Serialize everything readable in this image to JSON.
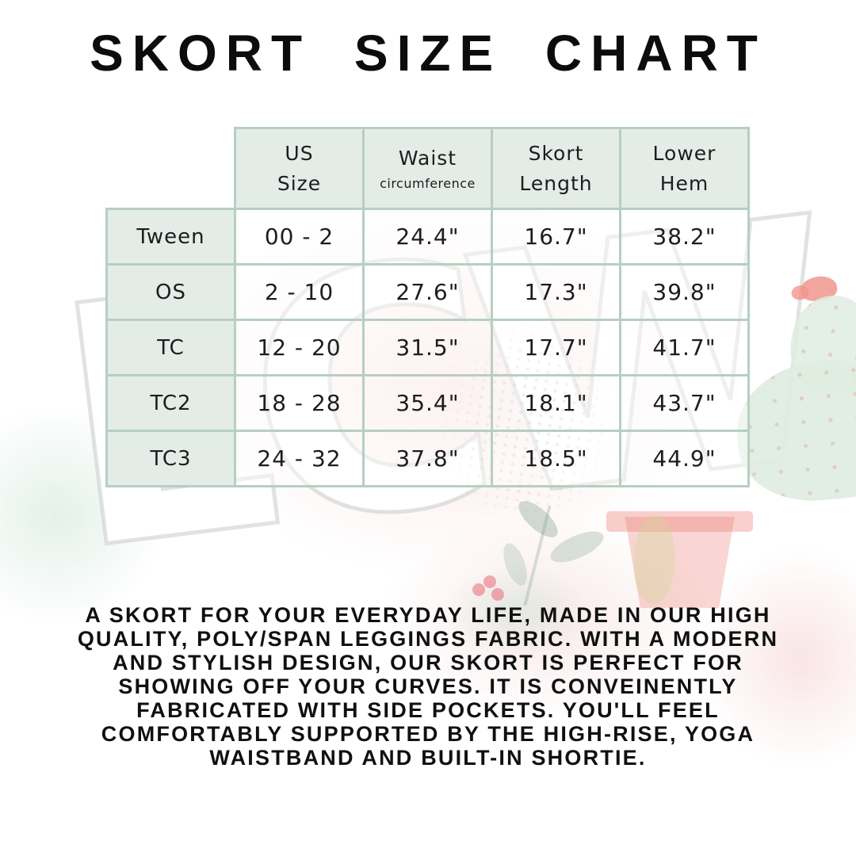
{
  "title": "SKORT SIZE CHART",
  "watermark": {
    "text": "LCW"
  },
  "chart_data": {
    "type": "table",
    "title": "SKORT SIZE CHART",
    "columns": [
      "",
      "US Size",
      "Waist circumference",
      "Skort Length",
      "Lower Hem"
    ],
    "rows": [
      [
        "Tween",
        "00 - 2",
        "24.4\"",
        "16.7\"",
        "38.2\""
      ],
      [
        "OS",
        "2 - 10",
        "27.6\"",
        "17.3\"",
        "39.8\""
      ],
      [
        "TC",
        "12 - 20",
        "31.5\"",
        "17.7\"",
        "41.7\""
      ],
      [
        "TC2",
        "18 - 28",
        "35.4\"",
        "18.1\"",
        "43.7\""
      ],
      [
        "TC3",
        "24 - 32",
        "37.8\"",
        "18.5\"",
        "44.9\""
      ]
    ]
  },
  "table": {
    "headers": [
      {
        "line1": "US",
        "line2": "Size"
      },
      {
        "line1": "Waist",
        "line2": "circumference"
      },
      {
        "line1": "Skort",
        "line2": "Length"
      },
      {
        "line1": "Lower",
        "line2": "Hem"
      }
    ],
    "rows": [
      {
        "label": "Tween",
        "us_size": "00 - 2",
        "waist": "24.4\"",
        "skort_length": "16.7\"",
        "lower_hem": "38.2\""
      },
      {
        "label": "OS",
        "us_size": "2 - 10",
        "waist": "27.6\"",
        "skort_length": "17.3\"",
        "lower_hem": "39.8\""
      },
      {
        "label": "TC",
        "us_size": "12 - 20",
        "waist": "31.5\"",
        "skort_length": "17.7\"",
        "lower_hem": "41.7\""
      },
      {
        "label": "TC2",
        "us_size": "18 - 28",
        "waist": "35.4\"",
        "skort_length": "18.1\"",
        "lower_hem": "43.7\""
      },
      {
        "label": "TC3",
        "us_size": "24 - 32",
        "waist": "37.8\"",
        "skort_length": "18.5\"",
        "lower_hem": "44.9\""
      }
    ]
  },
  "description": {
    "lines": [
      "A SKORT FOR YOUR EVERYDAY LIFE, MADE IN OUR HIGH",
      "QUALITY, POLY/SPAN LEGGINGS FABRIC. WITH A MODERN",
      "AND STYLISH DESIGN, OUR SKORT IS PERFECT FOR",
      "SHOWING OFF YOUR CURVES. IT IS CONVEINENTLY",
      "FABRICATED WITH SIDE POCKETS. YOU'LL FEEL",
      "COMFORTABLY SUPPORTED BY THE HIGH-RISE, YOGA",
      "WAISTBAND AND BUILT-IN SHORTIE."
    ]
  },
  "colors": {
    "table_border": "#b7cec3",
    "header_cell_bg": "#e3ece7",
    "data_cell_bg": "#fdfbfb",
    "title_text": "#0c0c0c",
    "body_text": "#1d1d1d",
    "flower_pink": "#f0968c",
    "cactus_green": "#dfecdf",
    "pot_red": "#eb766c"
  }
}
